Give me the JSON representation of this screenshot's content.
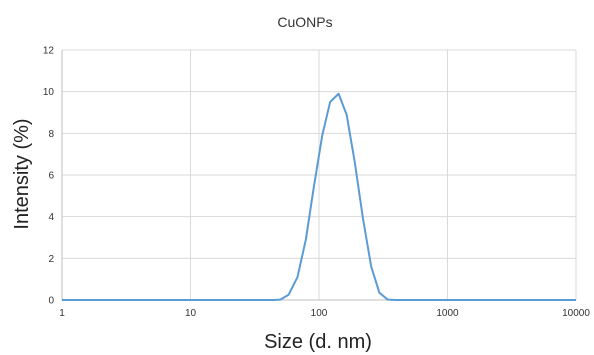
{
  "chart_data": {
    "type": "line",
    "title": "CuONPs",
    "xlabel": "Size (d. nm)",
    "ylabel": "Intensity (%)",
    "x_scale": "log",
    "xlim": [
      1,
      10000
    ],
    "ylim": [
      0,
      12
    ],
    "x_ticks": [
      "1",
      "10",
      "100",
      "1000",
      "10000"
    ],
    "y_ticks": [
      "0",
      "2",
      "4",
      "6",
      "8",
      "10",
      "12"
    ],
    "grid": true,
    "legend": "none",
    "color": "#5b9bd5",
    "series": [
      {
        "x": [
          1,
          45,
          50,
          58,
          68,
          79,
          91,
          106,
          122,
          142,
          164,
          190,
          220,
          255,
          295,
          342,
          400,
          1000,
          10000
        ],
        "y": [
          0,
          0,
          0.02,
          0.25,
          1.1,
          2.9,
          5.4,
          7.9,
          9.5,
          9.9,
          8.9,
          6.6,
          3.9,
          1.6,
          0.35,
          0.02,
          0,
          0,
          0
        ]
      }
    ]
  }
}
